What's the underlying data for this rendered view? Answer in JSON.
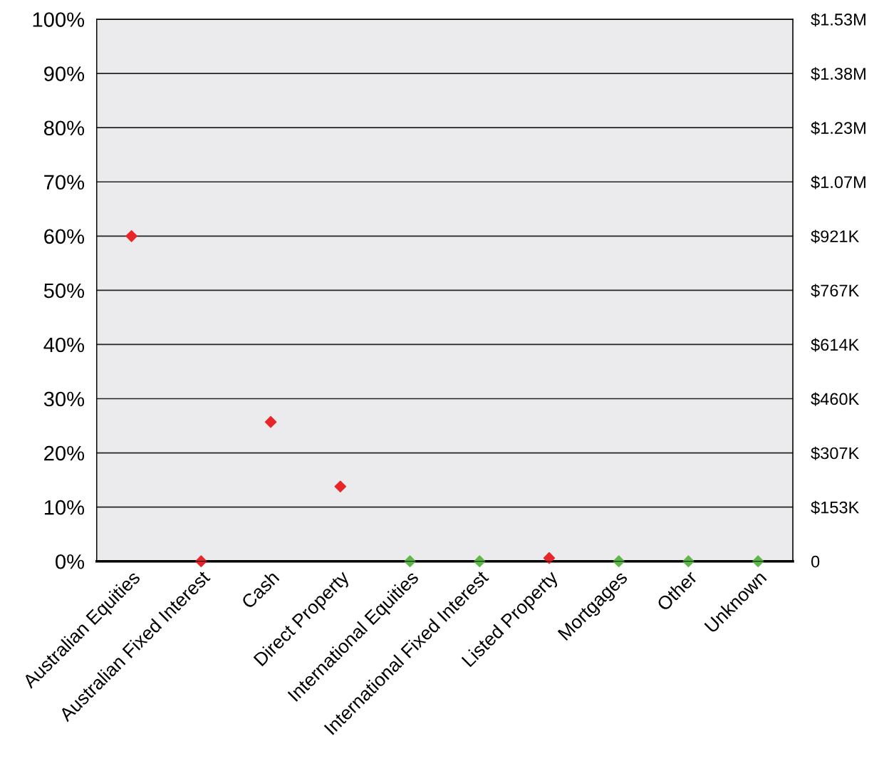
{
  "chart_data": {
    "type": "scatter",
    "categories": [
      "Australian Equities",
      "Australian Fixed Interest",
      "Cash",
      "Direct Property",
      "International Equities",
      "International Fixed Interest",
      "Listed Property",
      "Mortgages",
      "Other",
      "Unknown"
    ],
    "series": [
      {
        "values": [
          60,
          0,
          25.7,
          13.8,
          0,
          0,
          0.6,
          0,
          0,
          0
        ],
        "colors": [
          "#e8262a",
          "#e8262a",
          "#e8262a",
          "#e8262a",
          "#5db847",
          "#5db847",
          "#e8262a",
          "#5db847",
          "#5db847",
          "#5db847"
        ]
      }
    ],
    "marker": "diamond",
    "ylim": [
      0,
      100
    ],
    "yticks": [
      {
        "value": 0,
        "label": "0%"
      },
      {
        "value": 10,
        "label": "10%"
      },
      {
        "value": 20,
        "label": "20%"
      },
      {
        "value": 30,
        "label": "30%"
      },
      {
        "value": 40,
        "label": "40%"
      },
      {
        "value": 50,
        "label": "50%"
      },
      {
        "value": 60,
        "label": "60%"
      },
      {
        "value": 70,
        "label": "70%"
      },
      {
        "value": 80,
        "label": "80%"
      },
      {
        "value": 90,
        "label": "90%"
      },
      {
        "value": 100,
        "label": "100%"
      }
    ],
    "y2lim": [
      0,
      1535000
    ],
    "y2ticks": [
      0,
      {
        "value": 153500,
        "label": "$153K"
      },
      {
        "value": 307000,
        "label": "$307K"
      },
      {
        "value": 460500,
        "label": "$460K"
      },
      {
        "value": 614000,
        "label": "$614K"
      },
      {
        "value": 767500,
        "label": "$767K"
      },
      {
        "value": 921000,
        "label": "$921K"
      },
      {
        "value": 1074500,
        "label": "$1.07M"
      },
      {
        "value": 1228000,
        "label": "$1.23M"
      },
      {
        "value": 1381500,
        "label": "$1.38M"
      },
      {
        "value": 1535000,
        "label": "$1.53M"
      }
    ],
    "grid": "y",
    "legend": false
  }
}
